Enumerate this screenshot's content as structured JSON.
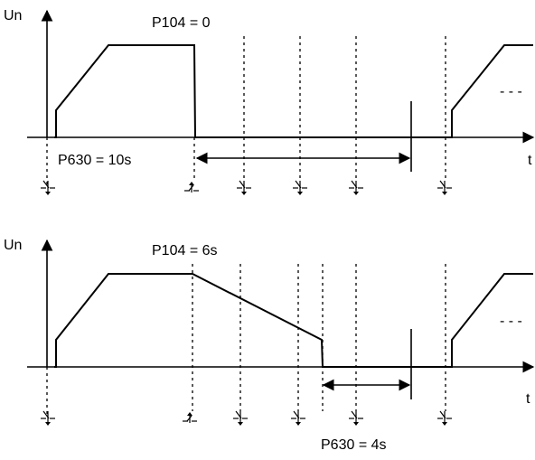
{
  "diagram_top": {
    "y_axis_label": "Un",
    "x_axis_label": "t",
    "param_delay_label": "P104 = 0",
    "param_dwell_label": "P630 = 10s",
    "ellipsis": "- - -"
  },
  "diagram_bottom": {
    "y_axis_label": "Un",
    "x_axis_label": "t",
    "param_delay_label": "P104 = 6s",
    "param_dwell_label": "P630 = 4s",
    "ellipsis": "- - -"
  }
}
